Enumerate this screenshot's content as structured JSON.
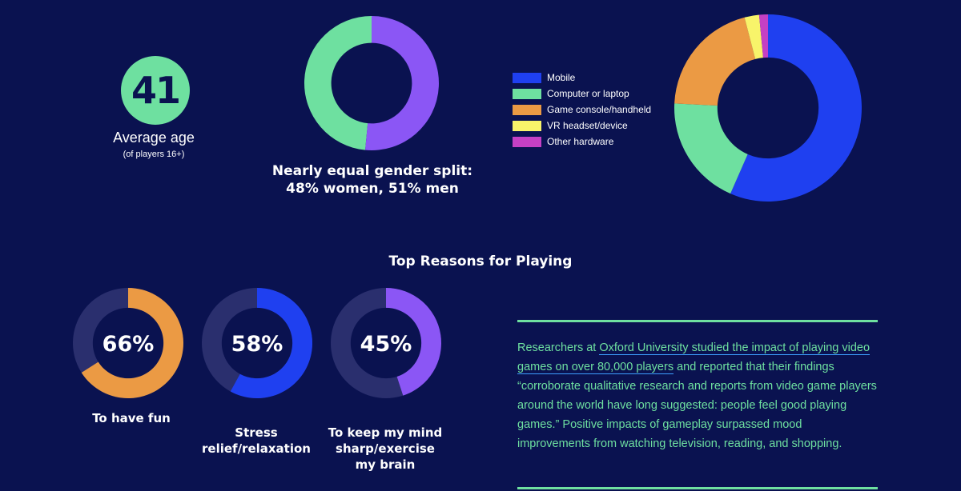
{
  "age": {
    "value": "41",
    "label": "Average age",
    "sublabel": "(of players 16+)",
    "color": "#6ee0a0"
  },
  "gender": {
    "caption_line1": "Nearly equal gender split:",
    "caption_line2": "48% women, 51% men"
  },
  "reasons": {
    "title": "Top Reasons for Playing",
    "items": [
      {
        "percent_label": "66%",
        "caption_lines": [
          "To have fun"
        ]
      },
      {
        "percent_label": "58%",
        "caption_lines": [
          "Stress",
          "relief/relaxation"
        ]
      },
      {
        "percent_label": "45%",
        "caption_lines": [
          "To keep my mind",
          "sharp/exercise",
          "my brain"
        ]
      }
    ]
  },
  "research": {
    "text_before": "Researchers at ",
    "link_text": "Oxford University studied the impact of playing video games on over 80,000 players",
    "text_after": " and reported that their findings “corroborate qualitative research and reports from video game players around the world have long suggested: people feel good playing games.” Positive impacts of gameplay surpassed mood improvements from watching television, reading, and shopping."
  },
  "chart_data": [
    {
      "type": "pie",
      "categories": [
        "women",
        "men"
      ],
      "values": [
        48,
        51
      ],
      "colors": [
        "#6ee0a0",
        "#8b56f5"
      ],
      "donut": true
    },
    {
      "type": "pie",
      "categories": [
        "Mobile",
        "Computer or laptop",
        "Game console/handheld",
        "VR headset/device",
        "Other hardware"
      ],
      "values": [
        56,
        19,
        20,
        2.5,
        1.5
      ],
      "colors": [
        "#1f40f0",
        "#6ee0a0",
        "#eb9a44",
        "#f8f46a",
        "#c540c4"
      ],
      "donut": true,
      "legend_position": "left"
    },
    {
      "type": "pie",
      "categories": [
        "To have fun"
      ],
      "values": [
        66
      ],
      "colors": [
        "#eb9a44"
      ],
      "track_color": "#2a2f6e",
      "donut": true
    },
    {
      "type": "pie",
      "categories": [
        "Stress relief/relaxation"
      ],
      "values": [
        58
      ],
      "colors": [
        "#1f40f0"
      ],
      "track_color": "#2a2f6e",
      "donut": true
    },
    {
      "type": "pie",
      "categories": [
        "To keep my mind sharp/exercise my brain"
      ],
      "values": [
        45
      ],
      "colors": [
        "#8b56f5"
      ],
      "track_color": "#2a2f6e",
      "donut": true
    }
  ]
}
